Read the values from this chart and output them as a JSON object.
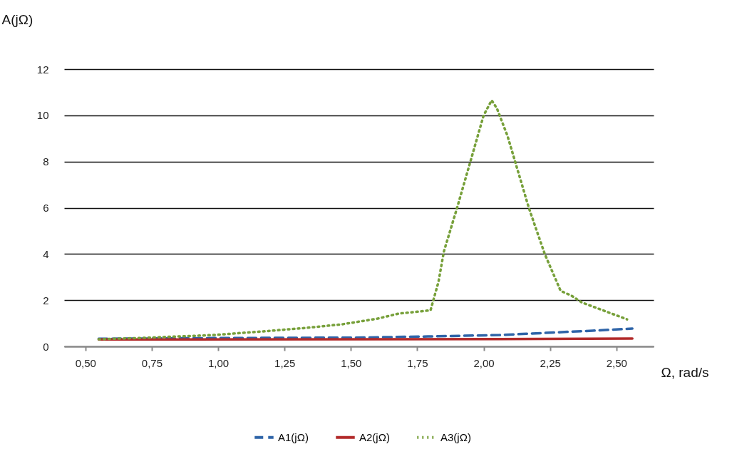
{
  "chart_data": {
    "type": "line",
    "xlabel": "Ω, rad/s",
    "ylabel": "A(jΩ)",
    "xlim": [
      0.42,
      2.64
    ],
    "xticks": [
      {
        "value": 0.5,
        "label": "0,50"
      },
      {
        "value": 0.75,
        "label": "0,75"
      },
      {
        "value": 1.0,
        "label": "1,00"
      },
      {
        "value": 1.25,
        "label": "1,25"
      },
      {
        "value": 1.5,
        "label": "1,50"
      },
      {
        "value": 1.75,
        "label": "1,75"
      },
      {
        "value": 2.0,
        "label": "2,00"
      },
      {
        "value": 2.25,
        "label": "2,25"
      },
      {
        "value": 2.5,
        "label": "2,50"
      }
    ],
    "ylim": [
      0,
      12
    ],
    "yticks": [
      0,
      2,
      4,
      6,
      8,
      10,
      12
    ],
    "grid": "y",
    "legend": "bottom",
    "marker": "none",
    "series": [
      {
        "name": "A1(jΩ)",
        "color": "#2e64a8",
        "line_style": "dashed",
        "x": [
          0.55,
          0.98,
          1.52,
          1.79,
          2.06,
          2.41,
          2.56
        ],
        "values": [
          0.33,
          0.36,
          0.38,
          0.43,
          0.49,
          0.68,
          0.77
        ]
      },
      {
        "name": "A2(jΩ)",
        "color": "#b22a2a",
        "line_style": "solid",
        "x": [
          0.55,
          1.52,
          2.06,
          2.56
        ],
        "values": [
          0.3,
          0.31,
          0.32,
          0.34
        ]
      },
      {
        "name": "A3(jΩ)",
        "color": "#77a03a",
        "line_style": "dotted",
        "x": [
          0.55,
          0.72,
          0.98,
          1.17,
          1.33,
          1.47,
          1.6,
          1.68,
          1.8,
          1.83,
          1.85,
          1.9,
          1.95,
          2.0,
          2.03,
          2.05,
          2.09,
          2.17,
          2.23,
          2.29,
          2.33,
          2.37,
          2.54
        ],
        "values": [
          0.31,
          0.37,
          0.49,
          0.65,
          0.8,
          0.96,
          1.2,
          1.42,
          1.56,
          2.8,
          4.1,
          6.0,
          8.0,
          10.0,
          10.65,
          10.3,
          9.1,
          6.0,
          4.0,
          2.4,
          2.2,
          1.9,
          1.17
        ]
      }
    ]
  }
}
